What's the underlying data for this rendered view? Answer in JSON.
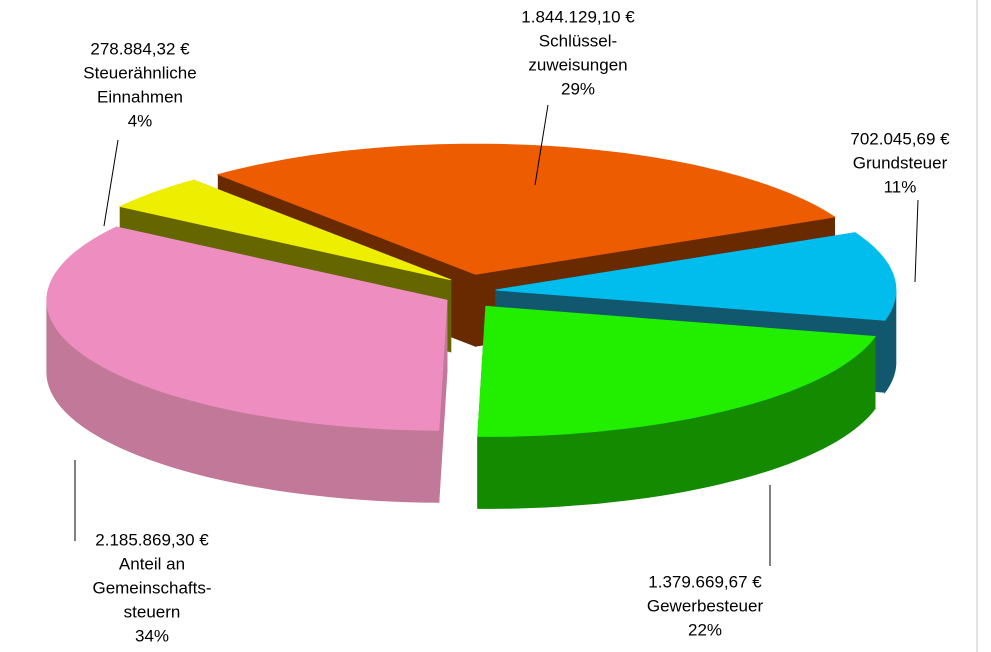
{
  "chart_data": {
    "type": "pie3d",
    "categories": [
      [
        "Schlüssel-",
        "zuweisungen"
      ],
      [
        "Grundsteuer"
      ],
      [
        "Gewerbesteuer"
      ],
      [
        "Anteil an",
        "Gemeinschafts-",
        "steuern"
      ],
      [
        "Steuerähnliche",
        "Einnahmen"
      ]
    ],
    "values": [
      1844129.1,
      702045.69,
      1379669.67,
      2185869.3,
      278884.32
    ],
    "value_labels": [
      "1.844.129,10 €",
      "702.045,69 €",
      "1.379.669,67 €",
      "2.185.869,30 €",
      "278.884,32 €"
    ],
    "percents": [
      29,
      11,
      22,
      34,
      4
    ],
    "percent_labels": [
      "29%",
      "11%",
      "22%",
      "34%",
      "4%"
    ],
    "colors": [
      "#ee5c00",
      "#00bdee",
      "#22ee00",
      "#ee8ec0",
      "#eeee00"
    ],
    "side_colors": [
      "#6a2a00",
      "#11586e",
      "#138a00",
      "#c27898",
      "#666600"
    ]
  }
}
